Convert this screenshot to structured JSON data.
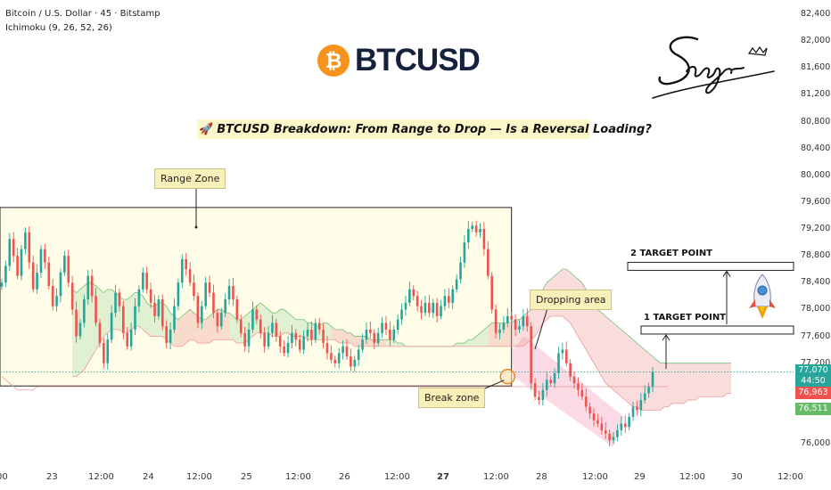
{
  "header": {
    "symbol_line": "Bitcoin / U.S. Dollar · 45 · Bitstamp",
    "indicator_line": "Ichimoku (9, 26, 52, 26)"
  },
  "logo": {
    "coin_symbol": "₿",
    "text": "BTCUSD",
    "coin_color": "#f7931a",
    "text_color": "#16213e"
  },
  "headline": {
    "icon": "rocket-icon",
    "text": "BTCUSD Breakdown: From Range to Drop — Is a Reversal Loading?"
  },
  "signature": {
    "text": "Sagar"
  },
  "annotations": {
    "range_zone": "Range Zone",
    "dropping_area": "Dropping area",
    "break_zone": "Break zone",
    "target_1": "1 TARGET POINT",
    "target_2": "2 TARGET POINT"
  },
  "price_badges": {
    "current": "77,070",
    "countdown": "44:50",
    "level_a": "76,963",
    "level_b": "76,511"
  },
  "colors": {
    "up": "#26a69a",
    "down": "#ef5350",
    "cloud_bull": "#a5d6a7",
    "cloud_bear": "#ef9a9a",
    "zone": "#fffde7",
    "current": "#26a69a"
  },
  "chart_data": {
    "type": "candlestick",
    "title": "BTCUSD Breakdown: From Range to Drop — Is a Reversal Loading?",
    "symbol": "Bitcoin / U.S. Dollar",
    "interval": "45",
    "exchange": "Bitstamp",
    "indicator": "Ichimoku (9, 26, 52, 26)",
    "y_axis": {
      "ticks": [
        82400,
        82000,
        81600,
        81200,
        80800,
        80400,
        80000,
        79600,
        79200,
        78800,
        78400,
        78000,
        77600,
        77200,
        76800,
        76400,
        76000
      ],
      "tick_labels": [
        "82,400",
        "82,000",
        "81,600",
        "81,200",
        "80,800",
        "80,400",
        "80,000",
        "79,600",
        "79,200",
        "78,800",
        "78,400",
        "78,000",
        "77,600",
        "77,200",
        "",
        "",
        "76,000"
      ]
    },
    "x_axis": {
      "ticks": [
        "00",
        "23",
        "12:00",
        "24",
        "12:00",
        "25",
        "12:00",
        "26",
        "12:00",
        "27",
        "12:00",
        "28",
        "12:00",
        "29",
        "12:00",
        "30",
        "12:00"
      ],
      "bold": [
        "27"
      ]
    },
    "range_zone": {
      "top": 79520,
      "bottom": 76860
    },
    "target_1": 77700,
    "target_2": 78650,
    "break_zone_price": 77000,
    "current_price": 77070,
    "closes": [
      78400,
      78650,
      79050,
      78800,
      78500,
      78900,
      79150,
      78700,
      78300,
      78550,
      78900,
      78700,
      78350,
      78050,
      78200,
      78550,
      78800,
      78400,
      78000,
      77600,
      77800,
      78150,
      78500,
      78200,
      77800,
      77500,
      77200,
      77550,
      77950,
      78250,
      78050,
      77650,
      77450,
      77700,
      78050,
      78300,
      78550,
      78300,
      78100,
      77900,
      78150,
      77750,
      77500,
      77700,
      78050,
      78400,
      78750,
      78600,
      78400,
      78200,
      77800,
      78050,
      78400,
      78250,
      77950,
      77750,
      77950,
      78150,
      78350,
      78150,
      77850,
      77650,
      77450,
      77700,
      78000,
      77850,
      77650,
      77450,
      77650,
      77800,
      77600,
      77450,
      77350,
      77500,
      77650,
      77550,
      77400,
      77600,
      77700,
      77550,
      77800,
      77700,
      77500,
      77350,
      77250,
      77200,
      77350,
      77450,
      77300,
      77150,
      77250,
      77400,
      77550,
      77700,
      77650,
      77500,
      77650,
      77800,
      77700,
      77550,
      77700,
      77850,
      78000,
      78100,
      78300,
      78200,
      78050,
      77950,
      78100,
      77950,
      78100,
      77900,
      78050,
      78200,
      78100,
      78300,
      78450,
      78700,
      79000,
      79200,
      79250,
      79150,
      79200,
      78900,
      78500,
      78000,
      77650,
      77700,
      77800,
      77900,
      77850,
      77700,
      77750,
      77900,
      77750,
      76900,
      76700,
      76650,
      76800,
      76950,
      76900,
      77050,
      77350,
      77400,
      77200,
      77000,
      76900,
      76800,
      76700,
      76550,
      76450,
      76350,
      76300,
      76200,
      76150,
      76050,
      76100,
      76200,
      76300,
      76250,
      76400,
      76550,
      76500,
      76650,
      76750,
      76850,
      77070
    ],
    "cloud_upper": [
      78300,
      78250,
      78300,
      78350,
      78400,
      78400,
      78350,
      78300,
      78250,
      78300,
      78300,
      78250,
      78200,
      78150,
      78150,
      78200,
      78250,
      78250,
      78200,
      78100,
      78050,
      78050,
      78100,
      78100,
      78050,
      77950,
      77900,
      77850,
      77900,
      77950,
      78000,
      77950,
      77900,
      77850,
      77850,
      77900,
      77950,
      78000,
      78000,
      77950,
      77950,
      77900,
      77850,
      77850,
      77900,
      77950,
      78000,
      78050,
      78100,
      78050,
      78000,
      77950,
      77950,
      78000,
      78000,
      77950,
      77900,
      77850,
      77850,
      77850,
      77800,
      77800,
      77750,
      77750,
      77800,
      77800,
      77750,
      77700,
      77700,
      77700,
      77650,
      77650,
      77600,
      77600,
      77600,
      77600,
      77550,
      77550,
      77550,
      77550,
      77550,
      77550,
      77550,
      77500,
      77500,
      77450,
      77450,
      77450,
      77450,
      77450,
      77450,
      77450,
      77450,
      77450,
      77450,
      77450,
      77450,
      77450,
      77500,
      77500,
      77500,
      77550,
      77550,
      77600,
      77650,
      77700,
      77750,
      77800,
      77800,
      77800,
      77800,
      77800,
      77800,
      77850,
      77850,
      77900,
      77950,
      78000,
      78100,
      78200,
      78300,
      78400,
      78450,
      78500,
      78550,
      78600,
      78600,
      78550,
      78500,
      78450,
      78400,
      78300,
      78200,
      78100,
      78000,
      77950,
      77900,
      77850,
      77800,
      77750,
      77700,
      77650,
      77600,
      77550,
      77500,
      77450,
      77400,
      77350,
      77300,
      77250,
      77200,
      77200,
      77200,
      77200,
      77200,
      77200,
      77200,
      77200,
      77200,
      77200,
      77200,
      77200,
      77200,
      77200,
      77200,
      77200,
      77200,
      77200,
      77200
    ],
    "cloud_lower": [
      77000,
      77000,
      77050,
      77100,
      77200,
      77300,
      77400,
      77500,
      77600,
      77650,
      77700,
      77700,
      77700,
      77650,
      77650,
      77700,
      77750,
      77750,
      77700,
      77650,
      77600,
      77600,
      77600,
      77600,
      77550,
      77500,
      77450,
      77450,
      77450,
      77500,
      77550,
      77550,
      77500,
      77500,
      77500,
      77500,
      77550,
      77550,
      77550,
      77550,
      77550,
      77550,
      77500,
      77500,
      77500,
      77550,
      77600,
      77650,
      77650,
      77650,
      77650,
      77600,
      77600,
      77600,
      77650,
      77650,
      77600,
      77600,
      77600,
      77600,
      77550,
      77550,
      77550,
      77550,
      77550,
      77550,
      77550,
      77550,
      77500,
      77500,
      77500,
      77500,
      77450,
      77450,
      77450,
      77450,
      77450,
      77450,
      77450,
      77450,
      77450,
      77450,
      77450,
      77450,
      77450,
      77450,
      77450,
      77450,
      77450,
      77450,
      77450,
      77450,
      77450,
      77450,
      77450,
      77450,
      77450,
      77450,
      77450,
      77450,
      77450,
      77450,
      77450,
      77450,
      77450,
      77450,
      77450,
      77450,
      77450,
      77450,
      77450,
      77450,
      77450,
      77450,
      77450,
      77450,
      77500,
      77550,
      77600,
      77700,
      77800,
      77850,
      77900,
      77900,
      77900,
      77900,
      77850,
      77800,
      77700,
      77600,
      77500,
      77400,
      77300,
      77200,
      77100,
      77000,
      76900,
      76850,
      76800,
      76750,
      76700,
      76650,
      76600,
      76550,
      76550,
      76500,
      76500,
      76500,
      76500,
      76500,
      76500,
      76550,
      76550,
      76600,
      76600,
      76600,
      76600,
      76650,
      76650,
      76650,
      76700,
      76700,
      76700,
      76700,
      76700,
      76700,
      76700,
      76750,
      76750
    ],
    "baseline": [
      77000,
      76950,
      76900,
      76850,
      76800,
      76800,
      76800,
      76800,
      76800,
      76850,
      76850,
      76850,
      76850,
      76850,
      76850,
      76850,
      76850,
      76850,
      76850,
      76850,
      76850,
      76850,
      76850,
      76850,
      76850,
      76850,
      76850,
      76850,
      76850,
      76850,
      76850,
      76850,
      76850,
      76850,
      76850,
      76850,
      76850,
      76850,
      76850,
      76850,
      76850,
      76850,
      76850,
      76850,
      76850,
      76850,
      76850,
      76850,
      76850,
      76850,
      76850,
      76850,
      76850,
      76850,
      76850,
      76850,
      76850,
      76850,
      76850,
      76850,
      76850,
      76850,
      76850,
      76850,
      76850,
      76850,
      76850,
      76850,
      76850,
      76850,
      76850,
      76850,
      76850,
      76850,
      76850,
      76850,
      76850,
      76850,
      76850,
      76850,
      76850,
      76850,
      76850,
      76850,
      76850,
      76850,
      76850,
      76850,
      76850,
      76850,
      76850,
      76850,
      76850,
      76850,
      76850,
      76850,
      76850,
      76850,
      76850,
      76850,
      76850,
      76850,
      76850,
      76850,
      76850,
      76850,
      76850,
      76850,
      76850,
      76850,
      76850,
      76850,
      76850,
      76850,
      76850,
      76850,
      76850,
      76850,
      76850,
      76850,
      76850,
      76850,
      76850,
      76850,
      76850,
      76850,
      76850,
      76850,
      76850,
      76850,
      76850,
      76850,
      76850,
      76850,
      76850,
      76850,
      76850,
      76850,
      76850,
      76850,
      76850,
      76850,
      76850,
      76850,
      76850,
      76850,
      76850,
      76850,
      76850,
      76850,
      76850,
      76850,
      76850,
      76850,
      76850,
      76850,
      76850,
      76850,
      76850,
      76850,
      76850,
      76850,
      76850,
      76850,
      76850,
      76850,
      76850,
      76850,
      76850,
      76850,
      76850
    ]
  }
}
